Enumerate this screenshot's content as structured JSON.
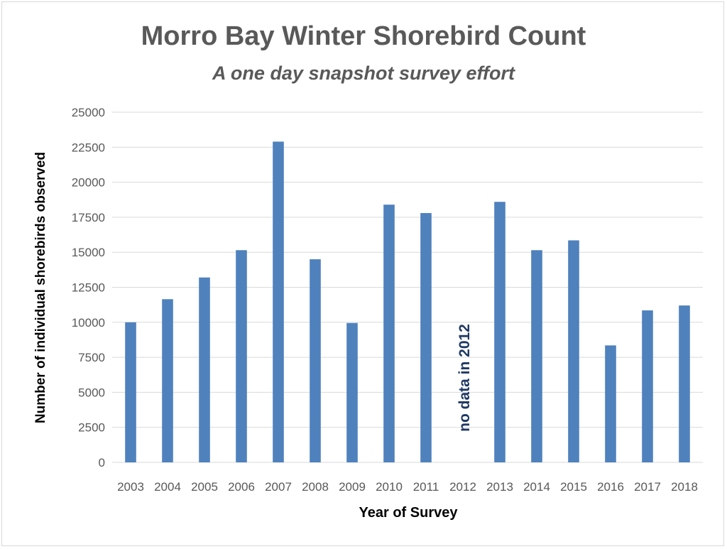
{
  "chart_data": {
    "type": "bar",
    "title": "Morro Bay Winter Shorebird Count",
    "subtitle": "A one day snapshot survey effort",
    "xlabel": "Year of Survey",
    "ylabel": "Number of individual shorebirds observed",
    "categories": [
      "2003",
      "2004",
      "2005",
      "2006",
      "2007",
      "2008",
      "2009",
      "2010",
      "2011",
      "2012",
      "2013",
      "2014",
      "2015",
      "2016",
      "2017",
      "2018"
    ],
    "values": [
      10000,
      11650,
      13200,
      15150,
      22900,
      14500,
      9950,
      18400,
      17800,
      null,
      18600,
      15150,
      15850,
      8350,
      10850,
      11200
    ],
    "ylim": [
      0,
      25000
    ],
    "yticks": [
      "0",
      "2500",
      "5000",
      "7500",
      "10000",
      "12500",
      "15000",
      "17500",
      "20000",
      "22500",
      "25000"
    ],
    "grid": true,
    "annotations": [
      {
        "text": "no data in 2012",
        "category": "2012",
        "rotation": -90
      }
    ],
    "colors": {
      "bar": "#4f81bd",
      "grid": "#d9d9d9",
      "tick_text": "#595959",
      "annotation": "#1f3864",
      "title": "#595959"
    }
  }
}
